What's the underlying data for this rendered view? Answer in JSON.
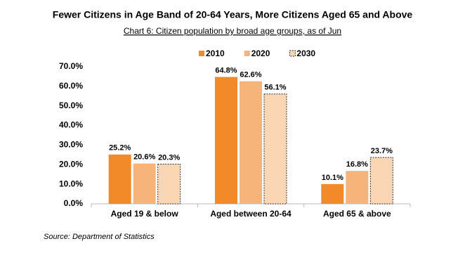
{
  "chart_data": {
    "type": "bar",
    "title": "Fewer Citizens in Age Band of 20-64 Years, More Citizens Aged 65 and Above",
    "subtitle": "Chart 6: Citizen population by broad age groups, as of Jun",
    "source": "Source: Department of Statistics",
    "categories": [
      "Aged 19 & below",
      "Aged between 20-64",
      "Aged 65 & above"
    ],
    "series": [
      {
        "name": "2010",
        "color": "#f28a2a",
        "values": [
          25.2,
          64.8,
          10.1
        ],
        "value_labels": [
          "25.2%",
          "64.8%",
          "10.1%"
        ]
      },
      {
        "name": "2020",
        "color": "#f7b47a",
        "values": [
          20.6,
          62.6,
          16.8
        ],
        "value_labels": [
          "20.6%",
          "62.6%",
          "16.8%"
        ]
      },
      {
        "name": "2030",
        "color": "#fbd6b4",
        "border": "dashed",
        "values": [
          20.3,
          56.1,
          23.7
        ],
        "value_labels": [
          "20.3%",
          "56.1%",
          "23.7%"
        ]
      }
    ],
    "ylim": [
      0,
      70
    ],
    "yticks": [
      {
        "value": 0,
        "label": "0.0%"
      },
      {
        "value": 10,
        "label": "10.0%"
      },
      {
        "value": 20,
        "label": "20.0%"
      },
      {
        "value": 30,
        "label": "30.0%"
      },
      {
        "value": 40,
        "label": "40.0%"
      },
      {
        "value": 50,
        "label": "50.0%"
      },
      {
        "value": 60,
        "label": "60.0%"
      },
      {
        "value": 70,
        "label": "70.0%"
      }
    ],
    "grid": false,
    "legend": "top"
  }
}
